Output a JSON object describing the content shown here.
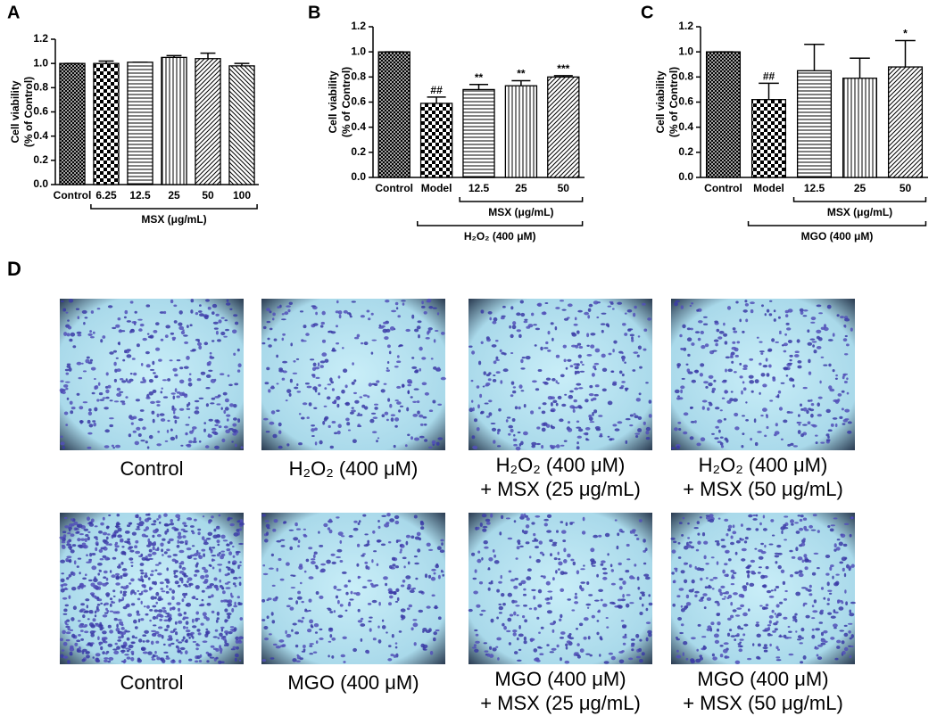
{
  "chart_data": [
    {
      "type": "bar",
      "panel": "A",
      "ylabel": [
        "Cell viability",
        "(% of Control)"
      ],
      "categories": [
        "Control",
        "6.25",
        "12.5",
        "25",
        "50",
        "100"
      ],
      "values": [
        1.0,
        1.0,
        1.01,
        1.05,
        1.04,
        0.98
      ],
      "errors": [
        0,
        0.02,
        0,
        0.015,
        0.045,
        0.02
      ],
      "annotations": [
        null,
        null,
        null,
        null,
        null,
        null
      ],
      "patterns": [
        "crosshatch",
        "checker",
        "horizontal",
        "vertical",
        "diagonal",
        "antidiagonal"
      ],
      "groups": [
        {
          "label": "MSX (μg/mL)",
          "span": [
            "6.25",
            "100"
          ]
        }
      ],
      "ylim": [
        0,
        1.2
      ],
      "yticks": [
        {
          "value": 0,
          "label": "0.0"
        },
        {
          "value": 0.2,
          "label": "0.2"
        },
        {
          "value": 0.4,
          "label": "0.4"
        },
        {
          "value": 0.6,
          "label": "0.6"
        },
        {
          "value": 0.8,
          "label": "0.8"
        },
        {
          "value": 1.0,
          "label": "1.0"
        },
        {
          "value": 1.2,
          "label": "1.2"
        }
      ],
      "color": "#000000"
    },
    {
      "type": "bar",
      "panel": "B",
      "ylabel": [
        "Cell viability",
        "(% of Control)"
      ],
      "categories": [
        "Control",
        "Model",
        "12.5",
        "25",
        "50"
      ],
      "values": [
        1.0,
        0.59,
        0.7,
        0.73,
        0.8
      ],
      "errors": [
        0,
        0.05,
        0.04,
        0.04,
        0.01
      ],
      "annotations": [
        null,
        "##",
        "**",
        "**",
        "***"
      ],
      "patterns": [
        "crosshatch",
        "checker",
        "horizontal",
        "vertical",
        "diagonal"
      ],
      "groups": [
        {
          "label": "MSX (μg/mL)",
          "span": [
            "12.5",
            "50"
          ]
        },
        {
          "label": "H₂O₂ (400 μM)",
          "span": [
            "Model",
            "50"
          ]
        }
      ],
      "ylim": [
        0,
        1.2
      ],
      "yticks": [
        {
          "value": 0,
          "label": "0.0"
        },
        {
          "value": 0.2,
          "label": "0.2"
        },
        {
          "value": 0.4,
          "label": "0.4"
        },
        {
          "value": 0.6,
          "label": "0.6"
        },
        {
          "value": 0.8,
          "label": "0.8"
        },
        {
          "value": 1.0,
          "label": "1.0"
        },
        {
          "value": 1.2,
          "label": "1.2"
        }
      ],
      "color": "#000000"
    },
    {
      "type": "bar",
      "panel": "C",
      "ylabel": [
        "Cell viability",
        "(% of Control)"
      ],
      "categories": [
        "Control",
        "Model",
        "12.5",
        "25",
        "50"
      ],
      "values": [
        1.0,
        0.62,
        0.85,
        0.79,
        0.88
      ],
      "errors": [
        0,
        0.13,
        0.21,
        0.16,
        0.21
      ],
      "annotations": [
        null,
        "##",
        null,
        null,
        "*"
      ],
      "patterns": [
        "crosshatch",
        "checker",
        "horizontal",
        "vertical",
        "diagonal"
      ],
      "groups": [
        {
          "label": "MSX (μg/mL)",
          "span": [
            "12.5",
            "50"
          ]
        },
        {
          "label": "MGO (400 μM)",
          "span": [
            "Model",
            "50"
          ]
        }
      ],
      "ylim": [
        0,
        1.2
      ],
      "yticks": [
        {
          "value": 0,
          "label": "0.0"
        },
        {
          "value": 0.2,
          "label": "0.2"
        },
        {
          "value": 0.4,
          "label": "0.4"
        },
        {
          "value": 0.6,
          "label": "0.6"
        },
        {
          "value": 0.8,
          "label": "0.8"
        },
        {
          "value": 1.0,
          "label": "1.0"
        },
        {
          "value": 1.2,
          "label": "1.2"
        }
      ],
      "color": "#000000"
    }
  ],
  "panel_d": {
    "label": "D",
    "images": [
      {
        "caption": [
          "Control"
        ]
      },
      {
        "caption": [
          "H₂O₂ (400 μM)"
        ]
      },
      {
        "caption": [
          "H₂O₂ (400 μM)",
          "+ MSX (25 μg/mL)"
        ]
      },
      {
        "caption": [
          "H₂O₂ (400 μM)",
          "+ MSX (50 μg/mL)"
        ]
      },
      {
        "caption": [
          "Control"
        ]
      },
      {
        "caption": [
          "MGO (400 μM)"
        ]
      },
      {
        "caption": [
          "MGO (400 μM)",
          "+ MSX (25 μg/mL)"
        ]
      },
      {
        "caption": [
          "MGO (400 μM)",
          "+ MSX (50 μg/mL)"
        ]
      }
    ]
  }
}
